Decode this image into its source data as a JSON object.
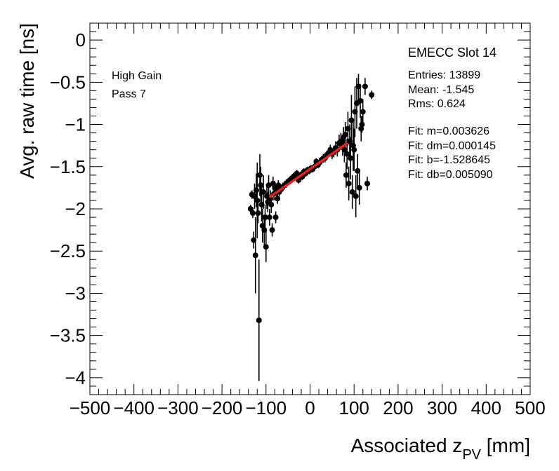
{
  "chart_data": {
    "type": "scatter",
    "xlabel": "Associated z",
    "xlabel_sub": "PV",
    "xlabel_unit": " [mm]",
    "ylabel": "Avg. raw time [ns]",
    "xlim": [
      -500,
      500
    ],
    "ylim": [
      -4.2,
      0.2
    ],
    "xticks": [
      -500,
      -400,
      -300,
      -200,
      -100,
      0,
      100,
      200,
      300,
      400,
      500
    ],
    "xtick_labels": [
      "−500",
      "−400",
      "−300",
      "−200",
      "−100",
      "0",
      "100",
      "200",
      "300",
      "400",
      "500"
    ],
    "yticks": [
      0,
      -0.5,
      -1,
      -1.5,
      -2,
      -2.5,
      -3,
      -3.5,
      -4
    ],
    "ytick_labels": [
      "0",
      "−0.5",
      "−1",
      "−1.5",
      "−2",
      "−2.5",
      "−3",
      "−3.5",
      "−4"
    ],
    "grid": false,
    "title": "EMECC Slot 14",
    "legend_text": [
      "Entries: 13899",
      "Mean: -1.545",
      "Rms: 0.624",
      "Fit: m=0.003626",
      "Fit: dm=0.000145",
      "Fit: b=-1.528645",
      "Fit: db=0.005090"
    ],
    "labels": [
      "High Gain",
      "Pass 7"
    ],
    "fit": {
      "m": 0.003626,
      "b": -1.528645,
      "x_range": [
        -92,
        85
      ],
      "color": "#e8211c"
    },
    "series": [
      {
        "name": "data",
        "color": "#000000",
        "x": [
          -135,
          -132,
          -130,
          -128,
          -126,
          -124,
          -122,
          -120,
          -118,
          -116,
          -114,
          -112,
          -110,
          -108,
          -106,
          -104,
          -102,
          -100,
          -98,
          -96,
          -94,
          -92,
          -90,
          -88,
          -86,
          -84,
          -82,
          -80,
          -78,
          -76,
          -74,
          -72,
          -70,
          -66,
          -62,
          -58,
          -54,
          -50,
          -46,
          -42,
          -38,
          -34,
          -30,
          -26,
          -22,
          -18,
          -14,
          -10,
          -6,
          -2,
          2,
          6,
          10,
          14,
          18,
          22,
          26,
          30,
          34,
          38,
          42,
          46,
          50,
          54,
          58,
          62,
          66,
          70,
          74,
          76,
          78,
          80,
          82,
          84,
          86,
          88,
          90,
          92,
          94,
          96,
          98,
          100,
          102,
          104,
          106,
          108,
          110,
          112,
          114,
          116,
          118,
          120,
          125,
          130,
          140
        ],
        "y": [
          -2.0,
          -1.83,
          -2.05,
          -2.37,
          -1.85,
          -2.55,
          -1.78,
          -1.9,
          -2.05,
          -3.32,
          -1.6,
          -1.72,
          -1.95,
          -2.2,
          -1.8,
          -2.25,
          -2.1,
          -2.45,
          -1.85,
          -1.92,
          -1.72,
          -2.1,
          -1.88,
          -1.95,
          -2.25,
          -1.7,
          -1.82,
          -1.75,
          -2.1,
          -1.78,
          -1.88,
          -1.72,
          -1.8,
          -1.77,
          -1.74,
          -1.72,
          -1.7,
          -1.68,
          -1.66,
          -1.64,
          -1.62,
          -1.6,
          -1.58,
          -1.66,
          -1.6,
          -1.62,
          -1.56,
          -1.58,
          -1.54,
          -1.55,
          -1.52,
          -1.53,
          -1.5,
          -1.44,
          -1.48,
          -1.45,
          -1.42,
          -1.4,
          -1.4,
          -1.36,
          -1.34,
          -1.3,
          -1.35,
          -1.32,
          -1.28,
          -1.3,
          -1.22,
          -1.2,
          -1.25,
          -1.15,
          -1.3,
          -1.12,
          -1.6,
          -1.35,
          -1.05,
          -1.7,
          -1.2,
          -1.4,
          -0.95,
          -1.8,
          -1.25,
          -1.3,
          -0.85,
          -1.85,
          -0.75,
          -1.55,
          -0.55,
          -1.75,
          -0.72,
          -1.05,
          -1.0,
          -0.85,
          -0.55,
          -1.7,
          -0.65
        ],
        "yerr": [
          0.05,
          0.05,
          0.06,
          0.1,
          0.15,
          0.45,
          0.2,
          0.45,
          0.12,
          0.72,
          0.25,
          0.22,
          0.2,
          0.2,
          0.2,
          0.18,
          0.15,
          0.18,
          0.15,
          0.12,
          0.12,
          0.1,
          0.1,
          0.1,
          0.08,
          0.08,
          0.08,
          0.08,
          0.07,
          0.07,
          0.06,
          0.06,
          0.06,
          0.05,
          0.05,
          0.05,
          0.05,
          0.04,
          0.04,
          0.04,
          0.04,
          0.04,
          0.04,
          0.04,
          0.04,
          0.04,
          0.04,
          0.04,
          0.04,
          0.04,
          0.04,
          0.04,
          0.04,
          0.04,
          0.04,
          0.04,
          0.04,
          0.05,
          0.05,
          0.05,
          0.05,
          0.06,
          0.06,
          0.07,
          0.08,
          0.08,
          0.1,
          0.1,
          0.12,
          0.12,
          0.15,
          0.15,
          0.15,
          0.18,
          0.2,
          0.2,
          0.2,
          0.25,
          0.3,
          0.2,
          0.3,
          0.25,
          0.3,
          0.25,
          0.3,
          0.2,
          0.15,
          0.2,
          0.2,
          0.15,
          0.1,
          0.15,
          0.1,
          0.08,
          0.05
        ]
      }
    ]
  }
}
